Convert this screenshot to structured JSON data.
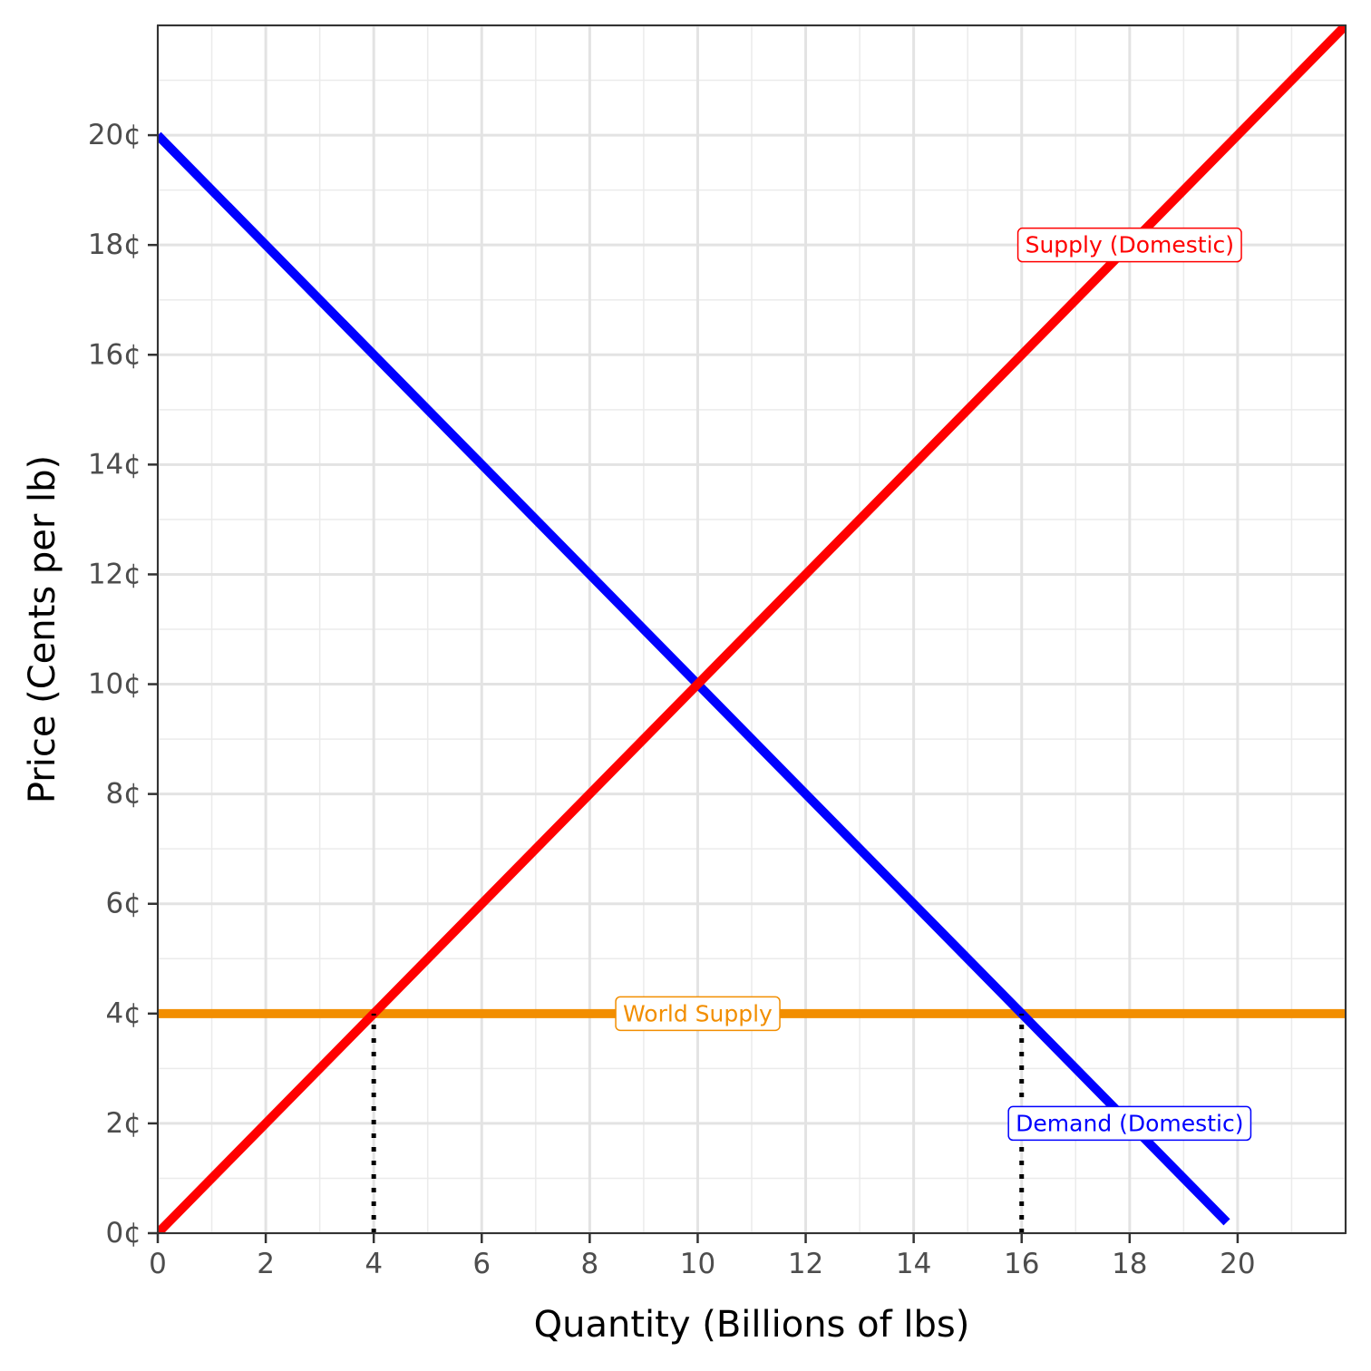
{
  "chart_data": {
    "type": "line",
    "title": "",
    "xlabel": "Quantity (Billions of lbs)",
    "ylabel": "Price (Cents per lb)",
    "xlim": [
      0,
      22
    ],
    "ylim": [
      0,
      22
    ],
    "x_ticks": [
      0,
      2,
      4,
      6,
      8,
      10,
      12,
      14,
      16,
      18,
      20
    ],
    "x_tick_labels": [
      "0",
      "2",
      "4",
      "6",
      "8",
      "10",
      "12",
      "14",
      "16",
      "18",
      "20"
    ],
    "y_ticks": [
      0,
      2,
      4,
      6,
      8,
      10,
      12,
      14,
      16,
      18,
      20
    ],
    "y_tick_labels": [
      "0¢",
      "2¢",
      "4¢",
      "6¢",
      "8¢",
      "10¢",
      "12¢",
      "14¢",
      "16¢",
      "18¢",
      "20¢"
    ],
    "grid": true,
    "series": [
      {
        "name": "Demand (Domestic)",
        "color": "#0000ff",
        "x": [
          0,
          19.8
        ],
        "y": [
          20,
          0.2
        ]
      },
      {
        "name": "Supply (Domestic)",
        "color": "#ff0000",
        "x": [
          0,
          22
        ],
        "y": [
          0,
          22
        ]
      },
      {
        "name": "World Supply",
        "color": "#f28e00",
        "x": [
          0,
          22
        ],
        "y": [
          4,
          4
        ]
      }
    ],
    "reference_lines": [
      {
        "x": 4,
        "y_from": 0,
        "y_to": 4,
        "style": "dotted",
        "color": "#000000"
      },
      {
        "x": 16,
        "y_from": 0,
        "y_to": 4,
        "style": "dotted",
        "color": "#000000"
      }
    ],
    "annotations": [
      {
        "text": "Supply (Domestic)",
        "x": 18,
        "y": 18,
        "color": "#ff0000"
      },
      {
        "text": "World Supply",
        "x": 10,
        "y": 4,
        "color": "#f28e00"
      },
      {
        "text": "Demand (Domestic)",
        "x": 18,
        "y": 2,
        "color": "#0000ff"
      }
    ]
  }
}
